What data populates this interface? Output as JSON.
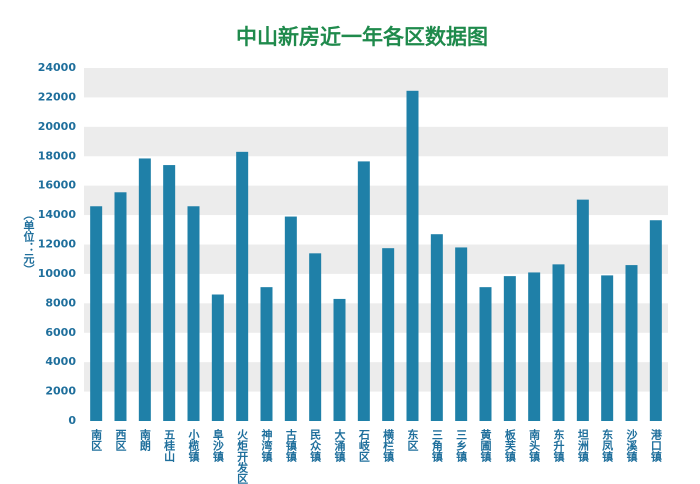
{
  "chart_data": {
    "type": "bar",
    "title": "中山新房近一年各区数据图",
    "y_label": "（单位：元）",
    "categories": [
      "南区",
      "西区",
      "南朗",
      "五桂山",
      "小榄镇",
      "阜沙镇",
      "火炬开发区",
      "神湾镇",
      "古镇镇",
      "民众镇",
      "大涌镇",
      "石岐区",
      "横栏镇",
      "东区",
      "三角镇",
      "三乡镇",
      "黄圃镇",
      "板芙镇",
      "南头镇",
      "东升镇",
      "坦洲镇",
      "东凤镇",
      "沙溪镇",
      "港口镇"
    ],
    "values": [
      14600,
      15550,
      17850,
      17400,
      14600,
      8600,
      18300,
      9100,
      13900,
      11400,
      8300,
      17650,
      11750,
      22450,
      12700,
      11800,
      9100,
      9850,
      10100,
      10650,
      15050,
      9900,
      10600,
      13650
    ],
    "color": "#1f80a8",
    "ylim": [
      0,
      24000
    ],
    "yticks": [
      0,
      2000,
      4000,
      6000,
      8000,
      10000,
      12000,
      14000,
      16000,
      18000,
      20000,
      22000,
      24000
    ],
    "grid": true
  }
}
